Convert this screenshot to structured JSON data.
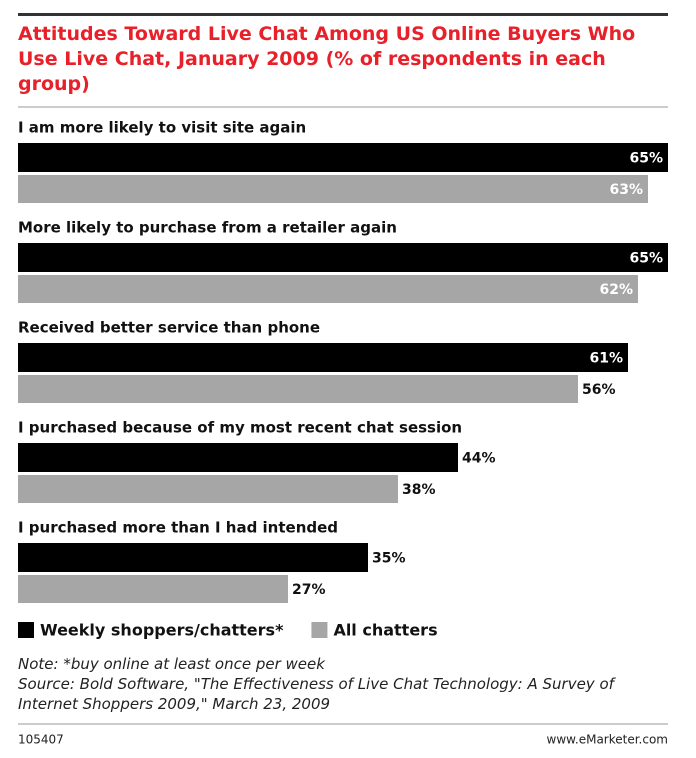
{
  "chart_data": {
    "type": "bar",
    "orientation": "horizontal",
    "title": "Attitudes Toward Live Chat Among US Online Buyers Who Use Live Chat, January 2009 (% of respondents in each group)",
    "categories": [
      "I am more likely to visit site again",
      "More likely to purchase from a retailer again",
      "Received better service than phone",
      "I purchased because of my most recent chat session",
      "I purchased more than I had intended"
    ],
    "series": [
      {
        "name": "Weekly shoppers/chatters*",
        "color": "#000000",
        "values": [
          65,
          65,
          61,
          44,
          35
        ],
        "value_labels": [
          "65%",
          "65%",
          "61%",
          "44%",
          "35%"
        ]
      },
      {
        "name": "All chatters",
        "color": "#a6a6a6",
        "values": [
          63,
          62,
          56,
          38,
          27
        ],
        "value_labels": [
          "63%",
          "62%",
          "56%",
          "38%",
          "27%"
        ]
      }
    ],
    "note": "Note: *buy online at least once per week",
    "source": "Source: Bold Software, \"The Effectiveness of Live Chat Technology: A Survey of Internet Shoppers 2009,\" March 23, 2009",
    "chart_id": "105407",
    "brand": "www.eMarketer.com"
  }
}
